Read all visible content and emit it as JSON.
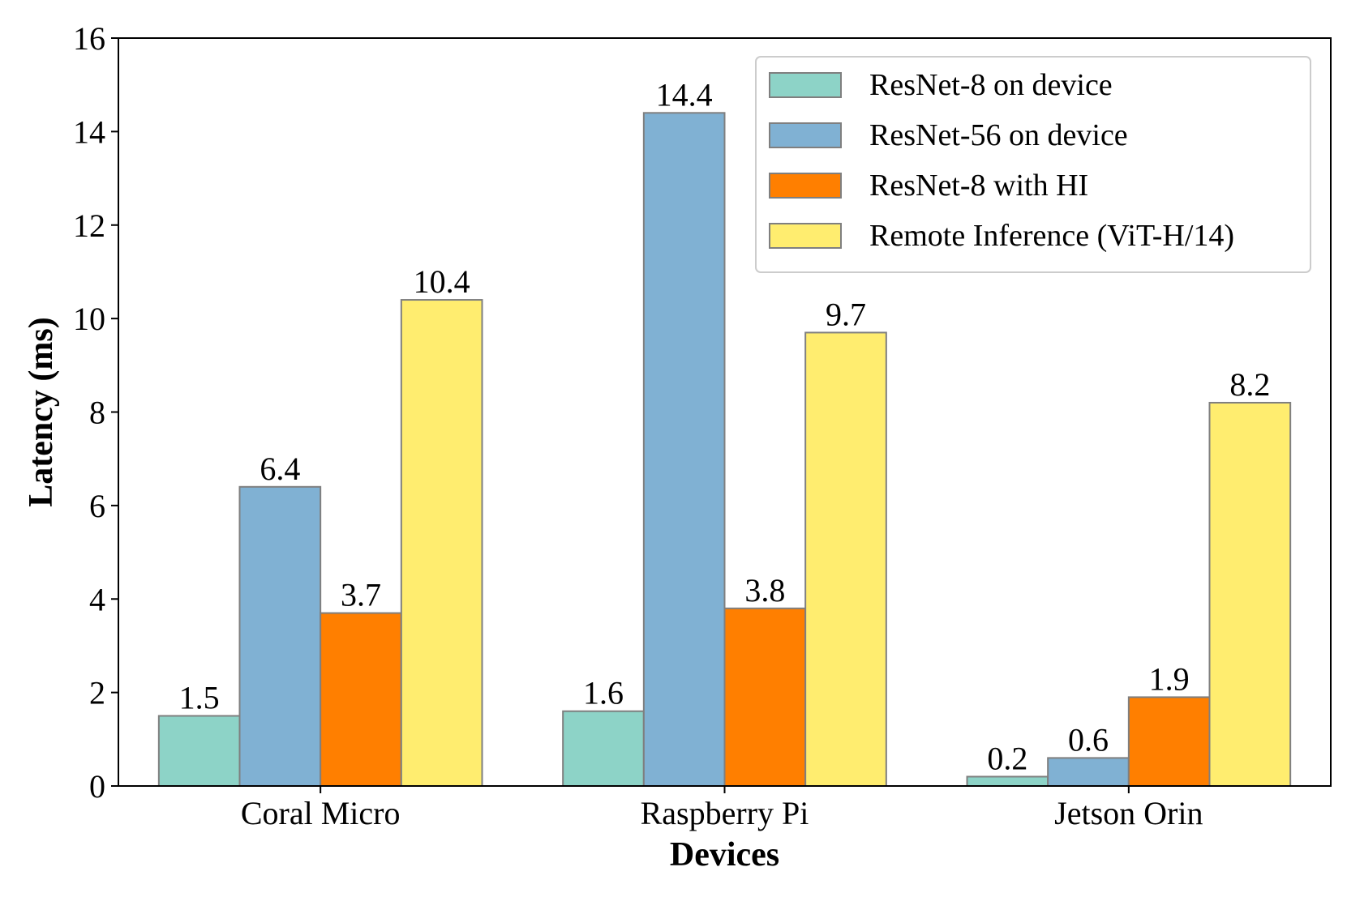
{
  "chart_data": {
    "type": "bar",
    "title": "",
    "xlabel": "Devices",
    "ylabel": "Latency (ms)",
    "ylim": [
      0,
      16
    ],
    "yticks": [
      0,
      2,
      4,
      6,
      8,
      10,
      12,
      14,
      16
    ],
    "categories": [
      "Coral Micro",
      "Raspberry Pi",
      "Jetson Orin"
    ],
    "series": [
      {
        "name": "ResNet-8 on device",
        "color": "#8dd3c7",
        "values": [
          1.5,
          1.6,
          0.2
        ],
        "labels": [
          "1.5",
          "1.6",
          "0.2"
        ]
      },
      {
        "name": "ResNet-56 on device",
        "color": "#80b1d3",
        "values": [
          6.4,
          14.4,
          0.6
        ],
        "labels": [
          "6.4",
          "14.4",
          "0.6"
        ]
      },
      {
        "name": "ResNet-8 with HI",
        "color": "#ff7f00",
        "values": [
          3.7,
          3.8,
          1.9
        ],
        "labels": [
          "3.7",
          "3.8",
          "1.9"
        ]
      },
      {
        "name": "Remote Inference (ViT-H/14)",
        "color": "#ffed6f",
        "values": [
          10.4,
          9.7,
          8.2
        ],
        "labels": [
          "10.4",
          "9.7",
          "8.2"
        ]
      }
    ],
    "grid": false,
    "legend_position": "top-right"
  }
}
